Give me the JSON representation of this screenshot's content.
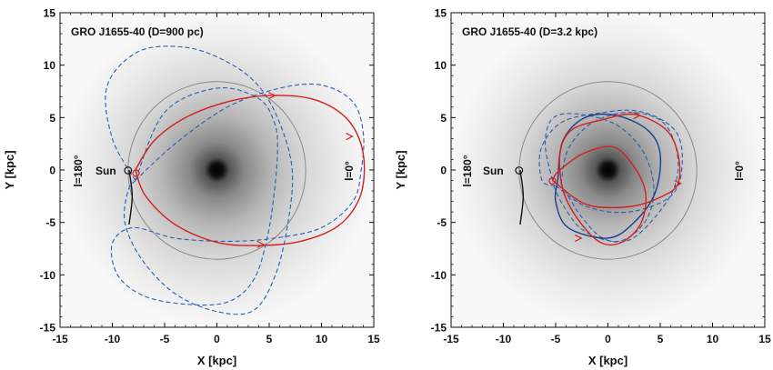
{
  "chart_data": [
    {
      "type": "line",
      "title": "GRO J1655-40  (D=900 pc)",
      "xlabel": "X [kpc]",
      "ylabel": "Y [kpc]",
      "xlim": [
        -15,
        15
      ],
      "ylim": [
        -15,
        15
      ],
      "xticks": [
        "-15",
        "-10",
        "-5",
        "0",
        "5",
        "10",
        "15"
      ],
      "yticks": [
        "15",
        "10",
        "5",
        "0",
        "-5",
        "-10",
        "-15"
      ],
      "grid": false,
      "annotations": {
        "sun": "Sun",
        "l180": "l=180°",
        "l0": "l=0°"
      },
      "sun_position": [
        -8.5,
        0
      ],
      "solar_circle_radius": 8.5,
      "series": [
        {
          "style": "dashed",
          "color": "#2b5fb0",
          "points": [
            [
              -7.8,
              -1
            ],
            [
              -10,
              3
            ],
            [
              -10.5,
              8
            ],
            [
              -7.5,
              11.3
            ],
            [
              -3,
              11.7
            ],
            [
              1,
              10.3
            ],
            [
              4,
              8
            ],
            [
              6,
              4.5
            ],
            [
              7.2,
              0
            ],
            [
              6.8,
              -5
            ],
            [
              5.6,
              -10
            ],
            [
              3.5,
              -13.4
            ],
            [
              0,
              -13.5
            ],
            [
              -4,
              -11.8
            ],
            [
              -7.2,
              -8.5
            ],
            [
              -8.8,
              -5
            ],
            [
              -8.5,
              -2
            ],
            [
              -7.8,
              -1
            ]
          ]
        },
        {
          "style": "dashed",
          "color": "#2b5fb0",
          "points": [
            [
              -7.8,
              -1
            ],
            [
              -4,
              2.5
            ],
            [
              1,
              6
            ],
            [
              6,
              7.8
            ],
            [
              10,
              8.1
            ],
            [
              13,
              6.5
            ],
            [
              14,
              3.5
            ],
            [
              13.8,
              0
            ],
            [
              13,
              -3
            ],
            [
              10,
              -5.5
            ],
            [
              5.5,
              -6.5
            ],
            [
              1,
              -6.8
            ],
            [
              -4,
              -6.5
            ],
            [
              -8,
              -5.5
            ],
            [
              -10,
              -7
            ],
            [
              -9.5,
              -10
            ],
            [
              -7,
              -12
            ],
            [
              -3,
              -12.8
            ],
            [
              1,
              -12.6
            ],
            [
              3.5,
              -10.5
            ],
            [
              4.8,
              -6.5
            ],
            [
              5.5,
              -2
            ],
            [
              5.8,
              2
            ],
            [
              5.5,
              4.5
            ],
            [
              4,
              6.8
            ],
            [
              0,
              7.8
            ],
            [
              -5,
              5.5
            ],
            [
              -7.8,
              -1
            ]
          ]
        },
        {
          "style": "solid",
          "color": "#d42020",
          "points": [
            [
              -7.8,
              0
            ],
            [
              -6,
              2.8
            ],
            [
              -3,
              5
            ],
            [
              1,
              6.5
            ],
            [
              5,
              7.1
            ],
            [
              9,
              6.8
            ],
            [
              12,
              5.3
            ],
            [
              13.6,
              3
            ],
            [
              14.1,
              0
            ],
            [
              13.5,
              -3
            ],
            [
              11.5,
              -5.4
            ],
            [
              8,
              -6.8
            ],
            [
              4,
              -7.2
            ],
            [
              0,
              -6.9
            ],
            [
              -4,
              -5.2
            ],
            [
              -6.8,
              -2.5
            ],
            [
              -7.8,
              0
            ]
          ]
        },
        {
          "style": "solid",
          "color": "#111111",
          "points": [
            [
              -8.4,
              0
            ],
            [
              -8.1,
              -2.5
            ],
            [
              -8.4,
              -5.2
            ]
          ]
        }
      ],
      "arrows": [
        [
          5.3,
          7.1
        ],
        [
          12.7,
          3.2
        ],
        [
          4.2,
          -7.1
        ]
      ]
    },
    {
      "type": "line",
      "title": "GRO J1655-40  (D=3.2 kpc)",
      "xlabel": "X [kpc]",
      "ylabel": "Y [kpc]",
      "xlim": [
        -15,
        15
      ],
      "ylim": [
        -15,
        15
      ],
      "xticks": [
        "-15",
        "-10",
        "-5",
        "0",
        "5",
        "10",
        "15"
      ],
      "yticks": [
        "15",
        "10",
        "5",
        "0",
        "-5",
        "-10",
        "-15"
      ],
      "grid": false,
      "annotations": {
        "sun": "Sun",
        "l180": "l=180°",
        "l0": "l=0°"
      },
      "sun_position": [
        -8.5,
        0
      ],
      "solar_circle_radius": 8.5,
      "series": [
        {
          "style": "dashed",
          "color": "#2b5fb0",
          "points": [
            [
              -5.3,
              -1
            ],
            [
              -6,
              2.5
            ],
            [
              -5.2,
              5
            ],
            [
              -2.5,
              5.3
            ],
            [
              1,
              4.2
            ],
            [
              3.5,
              1.5
            ],
            [
              4.4,
              -2
            ],
            [
              3.5,
              -5
            ],
            [
              1,
              -6.8
            ],
            [
              -2.3,
              -5.8
            ],
            [
              -4.2,
              -3.5
            ],
            [
              -5.2,
              -1.5
            ]
          ]
        },
        {
          "style": "dashed",
          "color": "#2b5fb0",
          "points": [
            [
              -5,
              -1.5
            ],
            [
              -2,
              -3.5
            ],
            [
              2,
              -4
            ],
            [
              6,
              -2.5
            ],
            [
              7.1,
              0.5
            ],
            [
              6.4,
              3.8
            ],
            [
              3,
              5.6
            ],
            [
              -1,
              5.4
            ],
            [
              -4.5,
              4.5
            ],
            [
              -6.4,
              2
            ],
            [
              -6.3,
              -1
            ],
            [
              -5,
              -1.5
            ]
          ]
        },
        {
          "style": "dashed",
          "color": "#2b5fb0",
          "points": [
            [
              -4.5,
              -1.3
            ],
            [
              -3.8,
              2
            ],
            [
              -1.5,
              4.5
            ],
            [
              2,
              5.5
            ],
            [
              5.2,
              4.6
            ],
            [
              6.6,
              1.7
            ],
            [
              6.4,
              -1.5
            ],
            [
              4.5,
              -4.5
            ],
            [
              2,
              -6.7
            ],
            [
              -0.5,
              -6.5
            ],
            [
              -2.5,
              -4.5
            ],
            [
              -3.8,
              -2.5
            ],
            [
              -4.5,
              -1.3
            ]
          ]
        },
        {
          "style": "solid",
          "color": "#1a3e8a",
          "points": [
            [
              -4.8,
              -1
            ],
            [
              -4.3,
              2.8
            ],
            [
              -2.2,
              5
            ],
            [
              0.8,
              5.2
            ],
            [
              3.8,
              3.8
            ],
            [
              5,
              1.5
            ],
            [
              4.5,
              -2.2
            ],
            [
              2.5,
              -5
            ],
            [
              0,
              -6.5
            ],
            [
              -3.8,
              -5.5
            ],
            [
              -5,
              -3
            ],
            [
              -4.8,
              -1
            ]
          ]
        },
        {
          "style": "solid",
          "color": "#d42020",
          "points": [
            [
              -5.3,
              -1
            ],
            [
              -2,
              -3.3
            ],
            [
              2,
              -3.5
            ],
            [
              5,
              -2.6
            ],
            [
              6.7,
              -1.3
            ],
            [
              6.7,
              1.5
            ],
            [
              5.5,
              3.9
            ],
            [
              2.5,
              5.3
            ],
            [
              -0.5,
              4.8
            ],
            [
              -3.5,
              3.8
            ],
            [
              -4.6,
              1.5
            ],
            [
              -4.2,
              -2.2
            ],
            [
              -2.5,
              -5.2
            ],
            [
              -0.5,
              -7
            ],
            [
              1.5,
              -6.8
            ],
            [
              3.2,
              -5
            ],
            [
              3.6,
              -2.2
            ],
            [
              2.5,
              0.3
            ],
            [
              0.5,
              2.2
            ],
            [
              -2.5,
              1.5
            ],
            [
              -4.8,
              -0.2
            ],
            [
              -5.3,
              -1
            ]
          ]
        },
        {
          "style": "solid",
          "color": "#111111",
          "points": [
            [
              -8.4,
              0
            ],
            [
              -8.1,
              -2.5
            ],
            [
              -8.4,
              -5.2
            ]
          ]
        }
      ],
      "arrows": [
        [
          2.8,
          5.2
        ],
        [
          6.7,
          -1.3
        ],
        [
          -2.8,
          -6.5
        ]
      ]
    }
  ]
}
